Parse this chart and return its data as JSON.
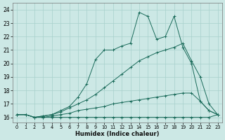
{
  "bg_color": "#cce8e5",
  "grid_color": "#a8d0cc",
  "line_color": "#1a6b5a",
  "xlabel": "Humidex (Indice chaleur)",
  "xlim_min": -0.5,
  "xlim_max": 23.5,
  "ylim_min": 15.6,
  "ylim_max": 24.5,
  "yticks": [
    16,
    17,
    18,
    19,
    20,
    21,
    22,
    23,
    24
  ],
  "xticks": [
    0,
    1,
    2,
    3,
    4,
    5,
    6,
    7,
    8,
    9,
    10,
    11,
    12,
    13,
    14,
    15,
    16,
    17,
    18,
    19,
    20,
    21,
    22,
    23
  ],
  "series": [
    {
      "x": [
        0,
        1,
        2,
        3,
        4,
        5,
        6,
        7,
        8,
        9,
        10,
        11,
        12,
        13,
        14,
        15,
        16,
        17,
        18,
        19,
        20,
        21,
        22,
        23
      ],
      "y": [
        16.2,
        16.2,
        16.0,
        16.0,
        16.0,
        16.0,
        16.0,
        16.0,
        16.0,
        16.0,
        16.0,
        16.0,
        16.0,
        16.0,
        16.0,
        16.0,
        16.0,
        16.0,
        16.0,
        16.0,
        16.0,
        16.0,
        16.0,
        16.2
      ]
    },
    {
      "x": [
        0,
        1,
        2,
        3,
        4,
        5,
        6,
        7,
        8,
        9,
        10,
        11,
        12,
        13,
        14,
        15,
        16,
        17,
        18,
        19,
        20,
        21,
        22,
        23
      ],
      "y": [
        16.2,
        16.2,
        16.0,
        16.0,
        16.1,
        16.2,
        16.3,
        16.5,
        16.6,
        16.7,
        16.8,
        17.0,
        17.1,
        17.2,
        17.3,
        17.4,
        17.5,
        17.6,
        17.7,
        17.8,
        17.8,
        17.2,
        16.5,
        16.2
      ]
    },
    {
      "x": [
        0,
        1,
        2,
        3,
        4,
        5,
        6,
        7,
        8,
        9,
        10,
        11,
        12,
        13,
        14,
        15,
        16,
        17,
        18,
        19,
        20,
        21,
        22,
        23
      ],
      "y": [
        16.2,
        16.2,
        16.0,
        16.1,
        16.2,
        16.4,
        16.7,
        17.0,
        17.3,
        17.7,
        18.2,
        18.7,
        19.2,
        19.7,
        20.2,
        20.5,
        20.8,
        21.0,
        21.2,
        21.5,
        20.2,
        19.0,
        17.0,
        16.2
      ]
    },
    {
      "x": [
        0,
        1,
        2,
        3,
        4,
        5,
        6,
        7,
        8,
        9,
        10,
        11,
        12,
        13,
        14,
        15,
        16,
        17,
        18,
        19,
        20,
        21,
        22,
        23
      ],
      "y": [
        16.2,
        16.2,
        16.0,
        16.1,
        16.2,
        16.5,
        16.8,
        17.5,
        18.5,
        20.3,
        21.0,
        21.0,
        21.3,
        21.5,
        23.8,
        23.5,
        21.8,
        22.0,
        23.5,
        21.2,
        20.0,
        17.2,
        16.5,
        16.2
      ]
    }
  ]
}
